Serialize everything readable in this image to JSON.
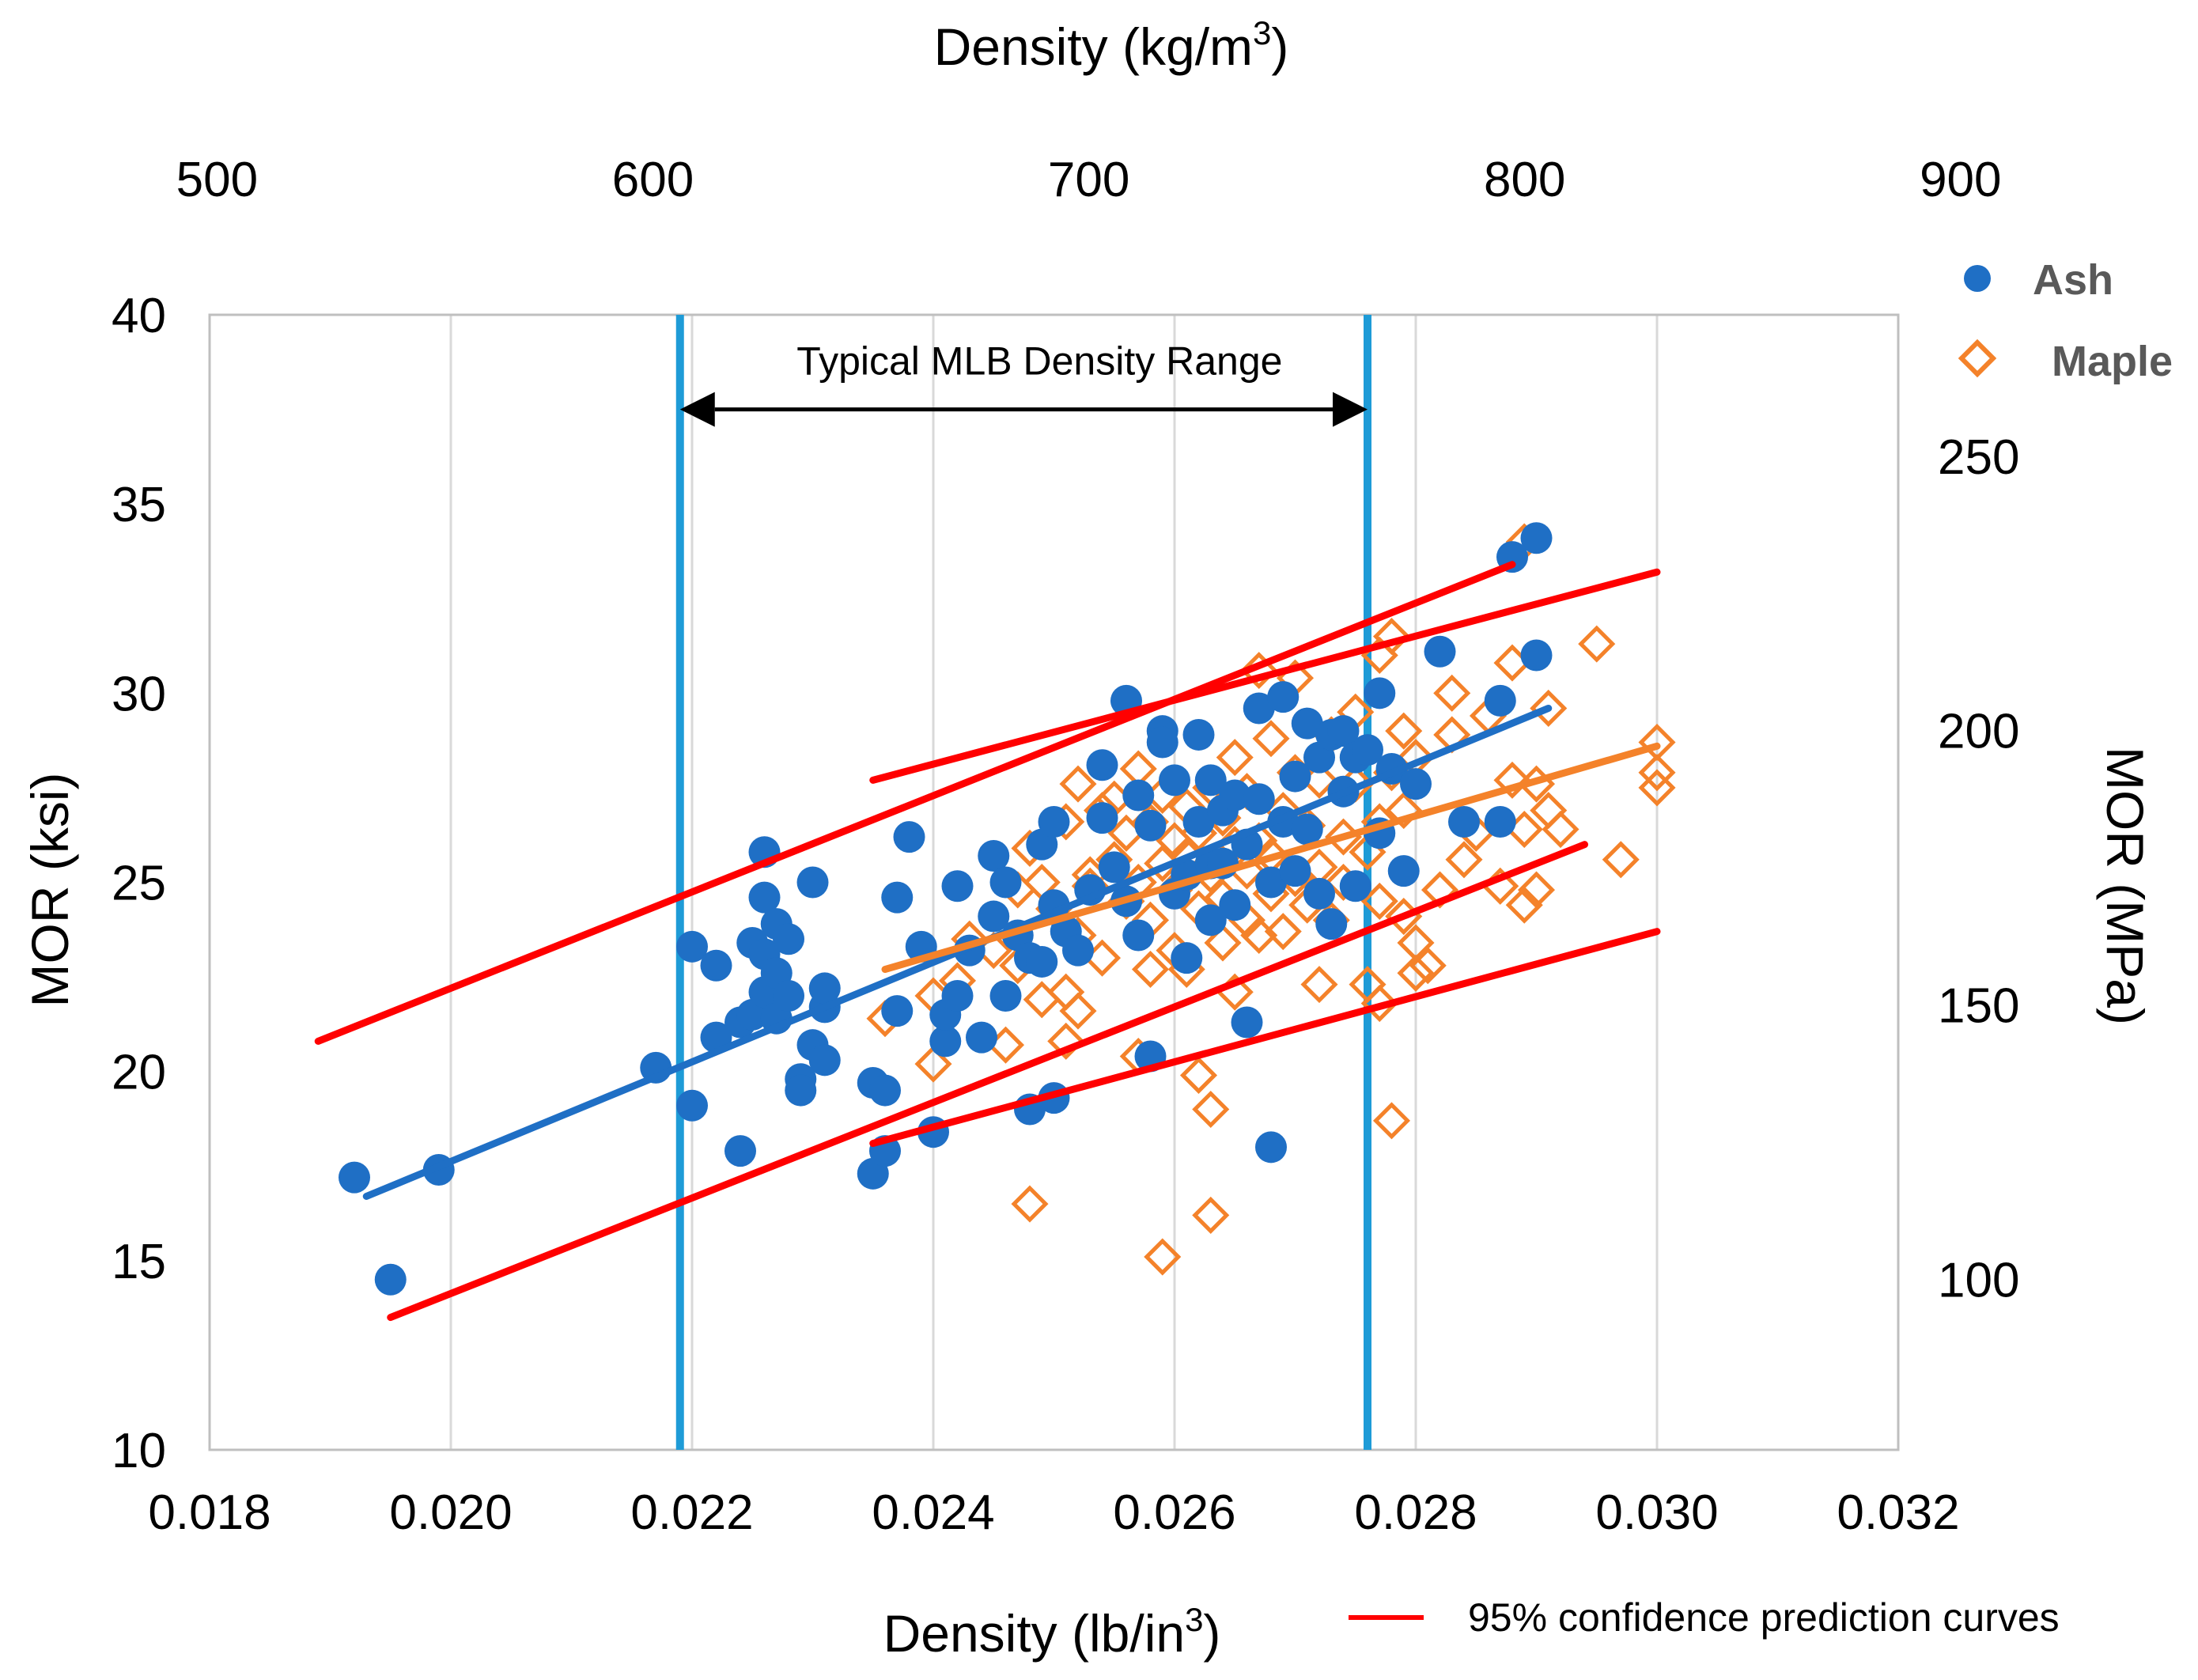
{
  "chart_data": {
    "type": "scatter",
    "x_axis_bottom": {
      "label_main": "Density (lb/in",
      "label_sup": "3",
      "label_tail": ")",
      "range": [
        0.018,
        0.032
      ],
      "ticks": [
        "0.018",
        "0.020",
        "0.022",
        "0.024",
        "0.026",
        "0.028",
        "0.030",
        "0.032"
      ]
    },
    "x_axis_top": {
      "label_main": "Density (kg/m",
      "label_sup": "3",
      "label_tail": ")",
      "range": [
        498.3,
        885.7
      ],
      "ticks": [
        "500",
        "600",
        "700",
        "800",
        "900"
      ]
    },
    "y_axis_left": {
      "label": "MOR (ksi)",
      "range": [
        10,
        40
      ],
      "ticks": [
        "10",
        "15",
        "20",
        "25",
        "30",
        "35",
        "40"
      ]
    },
    "y_axis_right": {
      "label": "MOR (MPa)",
      "range": [
        68.9,
        275.8
      ],
      "ticks": [
        "100",
        "150",
        "200",
        "250"
      ]
    },
    "grid": "vertical",
    "legend_placement": "top-right",
    "colors": {
      "ash": "#1f6fc5",
      "maple": "#f4822a",
      "prediction": "#ff0000",
      "range_lines": "#1e9bd7"
    },
    "density_range": {
      "label": "Typical MLB Density Range",
      "x_min": 0.0219,
      "x_max": 0.0276,
      "arrow_y": 37.5,
      "label_y": 38.8
    },
    "series": [
      {
        "name": "Ash",
        "marker": "circle",
        "points": [
          [
            0.0192,
            17.2
          ],
          [
            0.0195,
            14.5
          ],
          [
            0.0199,
            17.4
          ],
          [
            0.0217,
            20.1
          ],
          [
            0.022,
            23.3
          ],
          [
            0.022,
            19.1
          ],
          [
            0.0222,
            22.8
          ],
          [
            0.0222,
            20.9
          ],
          [
            0.0224,
            21.3
          ],
          [
            0.0224,
            17.9
          ],
          [
            0.0225,
            21.5
          ],
          [
            0.0225,
            23.4
          ],
          [
            0.0226,
            25.8
          ],
          [
            0.0226,
            24.6
          ],
          [
            0.0226,
            23.1
          ],
          [
            0.0226,
            22.1
          ],
          [
            0.0227,
            23.9
          ],
          [
            0.0227,
            22.6
          ],
          [
            0.0227,
            21.4
          ],
          [
            0.0228,
            23.5
          ],
          [
            0.0228,
            22.0
          ],
          [
            0.0229,
            19.8
          ],
          [
            0.0229,
            19.5
          ],
          [
            0.023,
            20.7
          ],
          [
            0.023,
            25.0
          ],
          [
            0.0231,
            21.7
          ],
          [
            0.0231,
            22.2
          ],
          [
            0.0231,
            20.3
          ],
          [
            0.0235,
            19.7
          ],
          [
            0.0235,
            17.3
          ],
          [
            0.0236,
            19.5
          ],
          [
            0.0236,
            17.9
          ],
          [
            0.0237,
            24.6
          ],
          [
            0.0237,
            21.6
          ],
          [
            0.0238,
            26.2
          ],
          [
            0.0239,
            23.3
          ],
          [
            0.024,
            18.4
          ],
          [
            0.0241,
            20.8
          ],
          [
            0.0241,
            21.5
          ],
          [
            0.0242,
            24.9
          ],
          [
            0.0242,
            22.0
          ],
          [
            0.0243,
            23.2
          ],
          [
            0.0244,
            20.9
          ],
          [
            0.0245,
            25.7
          ],
          [
            0.0245,
            24.1
          ],
          [
            0.0246,
            22.0
          ],
          [
            0.0246,
            25.0
          ],
          [
            0.0247,
            23.6
          ],
          [
            0.0248,
            23.0
          ],
          [
            0.0248,
            19.0
          ],
          [
            0.0249,
            22.9
          ],
          [
            0.0249,
            26.0
          ],
          [
            0.025,
            24.4
          ],
          [
            0.025,
            19.3
          ],
          [
            0.025,
            26.6
          ],
          [
            0.0251,
            23.7
          ],
          [
            0.0252,
            23.2
          ],
          [
            0.0253,
            24.8
          ],
          [
            0.0254,
            28.1
          ],
          [
            0.0254,
            26.7
          ],
          [
            0.0255,
            25.4
          ],
          [
            0.0256,
            29.8
          ],
          [
            0.0256,
            24.5
          ],
          [
            0.0257,
            27.3
          ],
          [
            0.0257,
            23.6
          ],
          [
            0.0258,
            26.5
          ],
          [
            0.0258,
            20.4
          ],
          [
            0.0259,
            29.0
          ],
          [
            0.0259,
            28.7
          ],
          [
            0.026,
            27.7
          ],
          [
            0.026,
            24.7
          ],
          [
            0.0261,
            25.2
          ],
          [
            0.0261,
            23.0
          ],
          [
            0.0262,
            28.9
          ],
          [
            0.0262,
            26.6
          ],
          [
            0.0263,
            27.7
          ],
          [
            0.0263,
            25.5
          ],
          [
            0.0263,
            24.0
          ],
          [
            0.0264,
            26.9
          ],
          [
            0.0264,
            25.5
          ],
          [
            0.0265,
            27.3
          ],
          [
            0.0265,
            24.4
          ],
          [
            0.0266,
            26.0
          ],
          [
            0.0266,
            21.3
          ],
          [
            0.0267,
            29.6
          ],
          [
            0.0267,
            27.2
          ],
          [
            0.0268,
            25.0
          ],
          [
            0.0268,
            18.0
          ],
          [
            0.0269,
            29.9
          ],
          [
            0.0269,
            26.6
          ],
          [
            0.027,
            27.8
          ],
          [
            0.027,
            25.3
          ],
          [
            0.0271,
            29.2
          ],
          [
            0.0271,
            26.4
          ],
          [
            0.0272,
            24.7
          ],
          [
            0.0272,
            28.3
          ],
          [
            0.0273,
            28.9
          ],
          [
            0.0273,
            23.9
          ],
          [
            0.0274,
            27.4
          ],
          [
            0.0274,
            29.0
          ],
          [
            0.0275,
            28.3
          ],
          [
            0.0275,
            24.9
          ],
          [
            0.0276,
            28.5
          ],
          [
            0.0277,
            30.0
          ],
          [
            0.0277,
            26.3
          ],
          [
            0.0278,
            28.0
          ],
          [
            0.0279,
            25.3
          ],
          [
            0.028,
            27.6
          ],
          [
            0.0282,
            31.1
          ],
          [
            0.0284,
            26.6
          ],
          [
            0.0287,
            26.6
          ],
          [
            0.0287,
            29.8
          ],
          [
            0.0288,
            33.6
          ],
          [
            0.029,
            34.1
          ],
          [
            0.029,
            31.0
          ]
        ],
        "fit": {
          "x1": 0.0193,
          "y1": 16.7,
          "x2": 0.0291,
          "y2": 29.6
        }
      },
      {
        "name": "Maple",
        "marker": "diamond-open",
        "points": [
          [
            0.0236,
            21.4
          ],
          [
            0.024,
            20.2
          ],
          [
            0.024,
            22.0
          ],
          [
            0.0242,
            22.4
          ],
          [
            0.0243,
            23.5
          ],
          [
            0.0245,
            23.2
          ],
          [
            0.0246,
            20.7
          ],
          [
            0.0247,
            24.8
          ],
          [
            0.0247,
            22.8
          ],
          [
            0.0248,
            16.5
          ],
          [
            0.0248,
            25.9
          ],
          [
            0.0249,
            21.9
          ],
          [
            0.0249,
            25.0
          ],
          [
            0.025,
            24.3
          ],
          [
            0.0251,
            20.8
          ],
          [
            0.0251,
            22.1
          ],
          [
            0.0251,
            26.6
          ],
          [
            0.0252,
            23.6
          ],
          [
            0.0252,
            27.6
          ],
          [
            0.0252,
            21.6
          ],
          [
            0.0253,
            25.2
          ],
          [
            0.0253,
            24.9
          ],
          [
            0.0254,
            26.9
          ],
          [
            0.0254,
            23.0
          ],
          [
            0.0255,
            25.6
          ],
          [
            0.0255,
            27.2
          ],
          [
            0.0256,
            24.5
          ],
          [
            0.0256,
            26.3
          ],
          [
            0.0257,
            20.4
          ],
          [
            0.0257,
            25.0
          ],
          [
            0.0257,
            28.0
          ],
          [
            0.0258,
            22.7
          ],
          [
            0.0258,
            26.6
          ],
          [
            0.0258,
            24.0
          ],
          [
            0.0259,
            15.1
          ],
          [
            0.0259,
            25.5
          ],
          [
            0.0259,
            27.3
          ],
          [
            0.026,
            23.2
          ],
          [
            0.026,
            26.1
          ],
          [
            0.026,
            24.8
          ],
          [
            0.0261,
            25.7
          ],
          [
            0.0261,
            27.0
          ],
          [
            0.0261,
            22.7
          ],
          [
            0.0262,
            19.9
          ],
          [
            0.0262,
            26.3
          ],
          [
            0.0262,
            24.3
          ],
          [
            0.0263,
            19.0
          ],
          [
            0.0263,
            16.2
          ],
          [
            0.0263,
            25.2
          ],
          [
            0.0263,
            27.5
          ],
          [
            0.0264,
            23.4
          ],
          [
            0.0264,
            26.7
          ],
          [
            0.0264,
            24.6
          ],
          [
            0.0265,
            22.1
          ],
          [
            0.0265,
            26.0
          ],
          [
            0.0265,
            28.3
          ],
          [
            0.0266,
            25.3
          ],
          [
            0.0266,
            24.0
          ],
          [
            0.0266,
            27.4
          ],
          [
            0.0267,
            30.6
          ],
          [
            0.0267,
            26.1
          ],
          [
            0.0267,
            23.6
          ],
          [
            0.0268,
            25.7
          ],
          [
            0.0268,
            28.8
          ],
          [
            0.0268,
            24.7
          ],
          [
            0.0269,
            23.7
          ],
          [
            0.0269,
            26.9
          ],
          [
            0.027,
            25.1
          ],
          [
            0.027,
            27.9
          ],
          [
            0.027,
            30.4
          ],
          [
            0.0271,
            24.4
          ],
          [
            0.0271,
            26.5
          ],
          [
            0.0272,
            22.3
          ],
          [
            0.0272,
            27.7
          ],
          [
            0.0272,
            25.4
          ],
          [
            0.0273,
            28.9
          ],
          [
            0.0273,
            24.0
          ],
          [
            0.0274,
            26.2
          ],
          [
            0.0274,
            25.0
          ],
          [
            0.0275,
            27.6
          ],
          [
            0.0275,
            29.5
          ],
          [
            0.0276,
            22.3
          ],
          [
            0.0276,
            25.8
          ],
          [
            0.0277,
            21.8
          ],
          [
            0.0277,
            26.6
          ],
          [
            0.0277,
            31.0
          ],
          [
            0.0277,
            24.5
          ],
          [
            0.0278,
            18.7
          ],
          [
            0.0278,
            27.9
          ],
          [
            0.0278,
            31.5
          ],
          [
            0.0279,
            26.9
          ],
          [
            0.0279,
            29.0
          ],
          [
            0.0279,
            24.1
          ],
          [
            0.028,
            22.6
          ],
          [
            0.028,
            28.3
          ],
          [
            0.028,
            23.4
          ],
          [
            0.0281,
            22.8
          ],
          [
            0.0282,
            24.8
          ],
          [
            0.0283,
            28.9
          ],
          [
            0.0283,
            30.0
          ],
          [
            0.0284,
            25.6
          ],
          [
            0.0285,
            26.3
          ],
          [
            0.0286,
            29.4
          ],
          [
            0.0287,
            24.9
          ],
          [
            0.0288,
            30.8
          ],
          [
            0.0288,
            27.7
          ],
          [
            0.0289,
            24.4
          ],
          [
            0.0289,
            26.4
          ],
          [
            0.0289,
            34.0
          ],
          [
            0.029,
            24.8
          ],
          [
            0.029,
            27.6
          ],
          [
            0.0291,
            29.6
          ],
          [
            0.0291,
            26.9
          ],
          [
            0.0292,
            26.4
          ],
          [
            0.0295,
            31.3
          ],
          [
            0.0297,
            25.6
          ],
          [
            0.03,
            27.9
          ],
          [
            0.03,
            27.5
          ],
          [
            0.03,
            28.7
          ]
        ],
        "fit": {
          "x1": 0.0236,
          "y1": 22.7,
          "x2": 0.03,
          "y2": 28.6
        }
      }
    ],
    "prediction_curves": {
      "label": "95% confidence prediction curves",
      "lines": [
        {
          "x1": 0.0189,
          "y1": 20.8,
          "x2": 0.0288,
          "y2": 33.4
        },
        {
          "x1": 0.0195,
          "y1": 13.5,
          "x2": 0.0294,
          "y2": 26.0
        },
        {
          "x1": 0.0235,
          "y1": 27.7,
          "x2": 0.03,
          "y2": 33.2
        },
        {
          "x1": 0.0235,
          "y1": 18.1,
          "x2": 0.03,
          "y2": 23.7
        }
      ]
    }
  }
}
